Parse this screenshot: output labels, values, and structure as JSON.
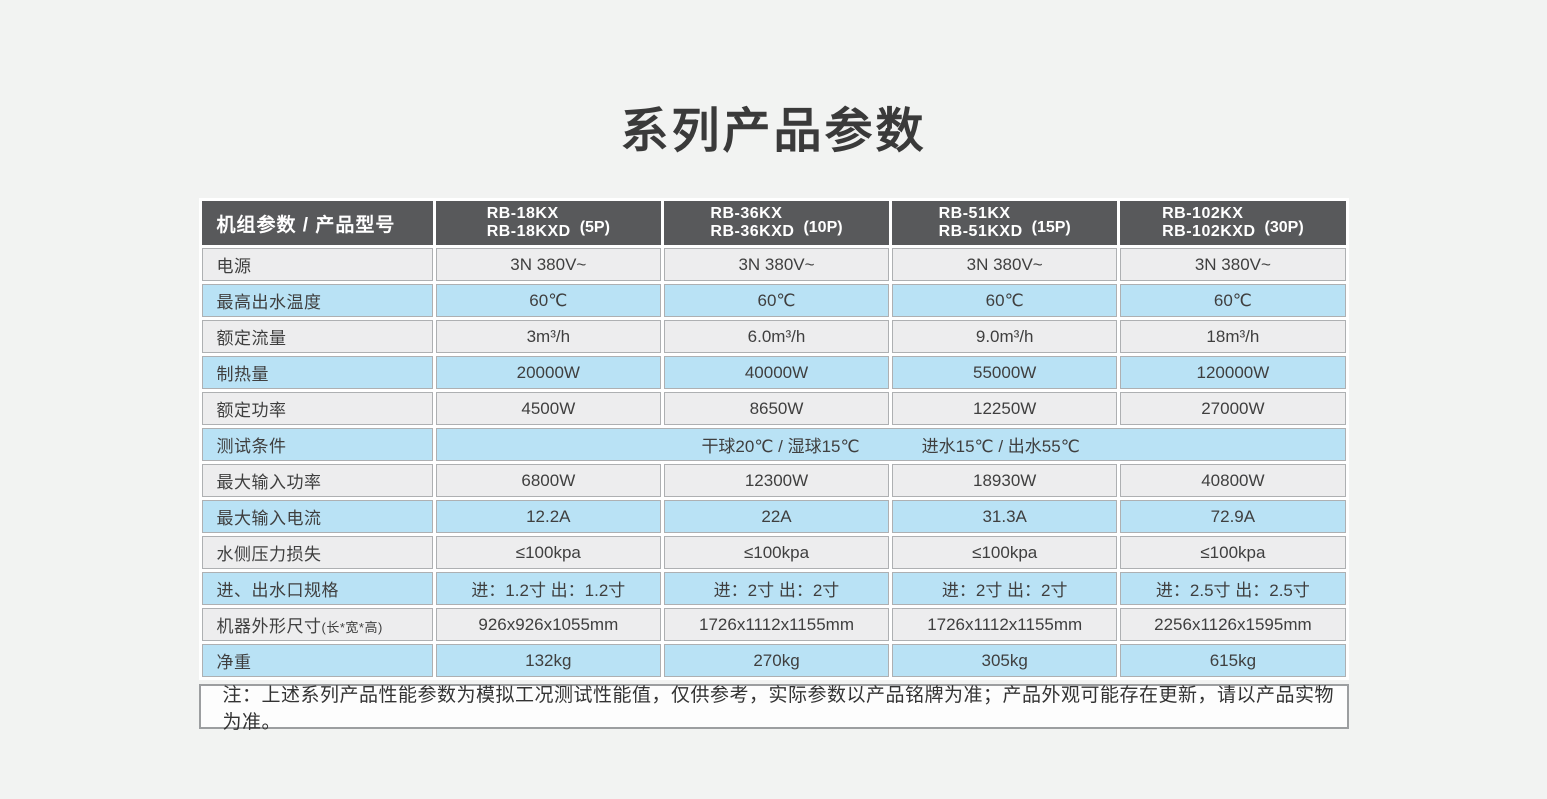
{
  "page": {
    "title": "系列产品参数",
    "background_color": "#f2f3f2",
    "title_color": "#3a3a3a"
  },
  "colors": {
    "header_bg": "#58595b",
    "header_text": "#ffffff",
    "blue_row_bg": "#b9e2f5",
    "gray_row_bg": "#ededee",
    "cell_border": "#aeb0b2",
    "note_bg": "#fdfdfd",
    "body_text": "#3f3f3f"
  },
  "table": {
    "header": {
      "param_label": "机组参数 / 产品型号",
      "models": [
        {
          "line1": "RB-18KX",
          "line2": "RB-18KXD",
          "power": "(5P)"
        },
        {
          "line1": "RB-36KX",
          "line2": "RB-36KXD",
          "power": "(10P)"
        },
        {
          "line1": "RB-51KX",
          "line2": "RB-51KXD",
          "power": "(15P)"
        },
        {
          "line1": "RB-102KX",
          "line2": "RB-102KXD",
          "power": "(30P)"
        }
      ]
    },
    "rows": [
      {
        "label": "电源",
        "tone": "gray",
        "values": [
          "3N 380V~",
          "3N 380V~",
          "3N 380V~",
          "3N 380V~"
        ]
      },
      {
        "label": "最高出水温度",
        "tone": "blue",
        "values": [
          "60℃",
          "60℃",
          "60℃",
          "60℃"
        ]
      },
      {
        "label": "额定流量",
        "tone": "gray",
        "values": [
          "3m³/h",
          "6.0m³/h",
          "9.0m³/h",
          "18m³/h"
        ]
      },
      {
        "label": "制热量",
        "tone": "blue",
        "values": [
          "20000W",
          "40000W",
          "55000W",
          "120000W"
        ]
      },
      {
        "label": "额定功率",
        "tone": "gray",
        "values": [
          "4500W",
          "8650W",
          "12250W",
          "27000W"
        ]
      },
      {
        "label": "测试条件",
        "tone": "blue",
        "merged": true,
        "condition_a": "干球20℃ / 湿球15℃",
        "condition_b": "进水15℃ / 出水55℃"
      },
      {
        "label": "最大输入功率",
        "tone": "gray",
        "values": [
          "6800W",
          "12300W",
          "18930W",
          "40800W"
        ]
      },
      {
        "label": "最大输入电流",
        "tone": "blue",
        "values": [
          "12.2A",
          "22A",
          "31.3A",
          "72.9A"
        ]
      },
      {
        "label": "水侧压力损失",
        "tone": "gray",
        "values": [
          "≤100kpa",
          "≤100kpa",
          "≤100kpa",
          "≤100kpa"
        ]
      },
      {
        "label": "进、出水口规格",
        "tone": "blue",
        "values": [
          "进：1.2寸  出：1.2寸",
          "进：2寸  出：2寸",
          "进：2寸  出：2寸",
          "进：2.5寸  出：2.5寸"
        ]
      },
      {
        "label": "机器外形尺寸",
        "label_suffix": "(长*宽*高)",
        "tone": "gray",
        "values": [
          "926x926x1055mm",
          "1726x1112x1155mm",
          "1726x1112x1155mm",
          "2256x1126x1595mm"
        ]
      },
      {
        "label": "净重",
        "tone": "blue",
        "values": [
          "132kg",
          "270kg",
          "305kg",
          "615kg"
        ]
      }
    ],
    "note": "注：上述系列产品性能参数为模拟工况测试性能值，仅供参考，实际参数以产品铭牌为准；产品外观可能存在更新，请以产品实物为准。"
  }
}
